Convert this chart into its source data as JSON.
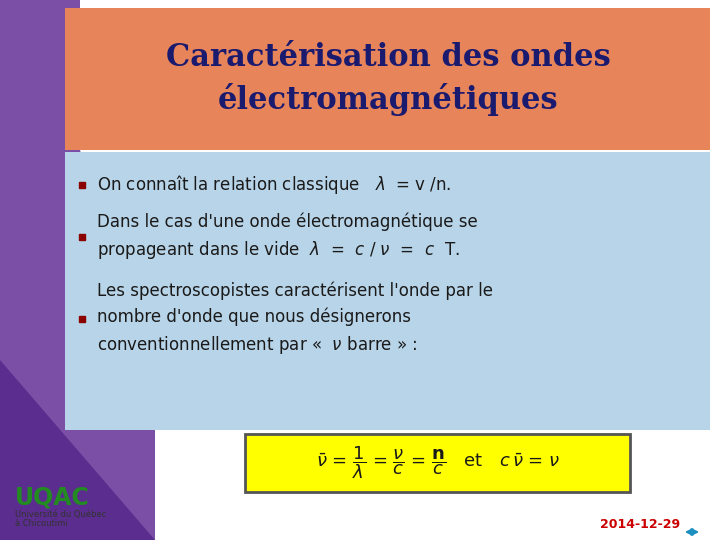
{
  "bg_color": "#ffffff",
  "title_bg_color": "#E8845A",
  "title_text": "Caractérisation des ondes\nélectromagnétiques",
  "title_color": "#1a1a6e",
  "title_fontsize": 22,
  "content_bg_color": "#b8d4e8",
  "bullet_color": "#1a1a1a",
  "bullet_fontsize": 12,
  "bullets": [
    "On connaît la relation classique   $\\lambda$  = v /n.",
    "Dans le cas d'une onde électromagnétique se\npropageant dans le vide  $\\lambda$  =  $c$ / $\\nu$  =  $c$  T.",
    "Les spectroscopistes caractérisent l'onde par le\nnombre d'onde que nous désignerons\nconventionnellement par «  $\\nu$ barre » :"
  ],
  "formula_bg": "#FFFF00",
  "formula_border": "#555555",
  "formula_fontsize": 13,
  "purple_color1": "#7B4FA6",
  "purple_color2": "#5B2D8E",
  "uqac_green": "#228B22",
  "date_text": "2014-12-29",
  "date_color": "#cc0000"
}
